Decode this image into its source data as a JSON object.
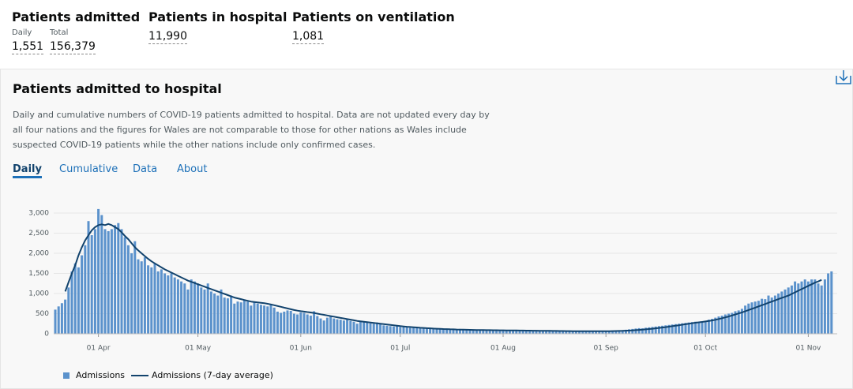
{
  "header": {
    "stats": [
      {
        "title": "Patients admitted",
        "items": [
          {
            "label": "Daily",
            "value": "1,551"
          },
          {
            "label": "Total",
            "value": "156,379"
          }
        ]
      },
      {
        "title": "Patients in hospital",
        "items": [
          {
            "value": "11,990"
          }
        ]
      },
      {
        "title": "Patients on ventilation",
        "items": [
          {
            "value": "1,081"
          }
        ]
      }
    ]
  },
  "card": {
    "title": "Patients admitted to hospital",
    "description": [
      "Daily and cumulative numbers of COVID-19 patients admitted to hospital. Data are not updated every day by",
      "all four nations and the figures for Wales are not comparable to those for other nations as Wales include",
      "suspected COVID-19 patients while the other nations include only confirmed cases."
    ],
    "tabs": [
      "Daily",
      "Cumulative",
      "Data",
      "About"
    ]
  },
  "chart_data": {
    "type": "bar",
    "grid": true,
    "legend": "bottom-left",
    "ylim": [
      0,
      3000
    ],
    "yticks": [
      0,
      500,
      {
        "value": 1000,
        "label": "1,000"
      },
      {
        "value": 1500,
        "label": "1,500"
      },
      {
        "value": 2000,
        "label": "2,000"
      },
      {
        "value": 2500,
        "label": "2,500"
      },
      {
        "value": 3000,
        "label": "3,000"
      }
    ],
    "xticks": [
      "01 Apr",
      "01 May",
      "01 Jun",
      "01 Jul",
      "01 Aug",
      "01 Sep",
      "01 Oct",
      "01 Nov"
    ],
    "categories": [
      "19 Mar",
      "20 Mar",
      "21 Mar",
      "22 Mar",
      "23 Mar",
      "24 Mar",
      "25 Mar",
      "26 Mar",
      "27 Mar",
      "28 Mar",
      "29 Mar",
      "30 Mar",
      "31 Mar",
      "01 Apr",
      "02 Apr",
      "03 Apr",
      "04 Apr",
      "05 Apr",
      "06 Apr",
      "07 Apr",
      "08 Apr",
      "09 Apr",
      "10 Apr",
      "11 Apr",
      "12 Apr",
      "13 Apr",
      "14 Apr",
      "15 Apr",
      "16 Apr",
      "17 Apr",
      "18 Apr",
      "19 Apr",
      "20 Apr",
      "21 Apr",
      "22 Apr",
      "23 Apr",
      "24 Apr",
      "25 Apr",
      "26 Apr",
      "27 Apr",
      "28 Apr",
      "29 Apr",
      "30 Apr",
      "01 May",
      "02 May",
      "03 May",
      "04 May",
      "05 May",
      "06 May",
      "07 May",
      "08 May",
      "09 May",
      "10 May",
      "11 May",
      "12 May",
      "13 May",
      "14 May",
      "15 May",
      "16 May",
      "17 May",
      "18 May",
      "19 May",
      "20 May",
      "21 May",
      "22 May",
      "23 May",
      "24 May",
      "25 May",
      "26 May",
      "27 May",
      "28 May",
      "29 May",
      "30 May",
      "31 May",
      "01 Jun",
      "02 Jun",
      "03 Jun",
      "04 Jun",
      "05 Jun",
      "06 Jun",
      "07 Jun",
      "08 Jun",
      "09 Jun",
      "10 Jun",
      "11 Jun",
      "12 Jun",
      "13 Jun",
      "14 Jun",
      "15 Jun",
      "16 Jun",
      "17 Jun",
      "18 Jun",
      "19 Jun",
      "20 Jun",
      "21 Jun",
      "22 Jun",
      "23 Jun",
      "24 Jun",
      "25 Jun",
      "26 Jun",
      "27 Jun",
      "28 Jun",
      "29 Jun",
      "30 Jun",
      "01 Jul",
      "02 Jul",
      "03 Jul",
      "04 Jul",
      "05 Jul",
      "06 Jul",
      "07 Jul",
      "08 Jul",
      "09 Jul",
      "10 Jul",
      "11 Jul",
      "12 Jul",
      "13 Jul",
      "14 Jul",
      "15 Jul",
      "16 Jul",
      "17 Jul",
      "18 Jul",
      "19 Jul",
      "20 Jul",
      "21 Jul",
      "22 Jul",
      "23 Jul",
      "24 Jul",
      "25 Jul",
      "26 Jul",
      "27 Jul",
      "28 Jul",
      "29 Jul",
      "30 Jul",
      "31 Jul",
      "01 Aug",
      "02 Aug",
      "03 Aug",
      "04 Aug",
      "05 Aug",
      "06 Aug",
      "07 Aug",
      "08 Aug",
      "09 Aug",
      "10 Aug",
      "11 Aug",
      "12 Aug",
      "13 Aug",
      "14 Aug",
      "15 Aug",
      "16 Aug",
      "17 Aug",
      "18 Aug",
      "19 Aug",
      "20 Aug",
      "21 Aug",
      "22 Aug",
      "23 Aug",
      "24 Aug",
      "25 Aug",
      "26 Aug",
      "27 Aug",
      "28 Aug",
      "29 Aug",
      "30 Aug",
      "31 Aug",
      "01 Sep",
      "02 Sep",
      "03 Sep",
      "04 Sep",
      "05 Sep",
      "06 Sep",
      "07 Sep",
      "08 Sep",
      "09 Sep",
      "10 Sep",
      "11 Sep",
      "12 Sep",
      "13 Sep",
      "14 Sep",
      "15 Sep",
      "16 Sep",
      "17 Sep",
      "18 Sep",
      "19 Sep",
      "20 Sep",
      "21 Sep",
      "22 Sep",
      "23 Sep",
      "24 Sep",
      "25 Sep",
      "26 Sep",
      "27 Sep",
      "28 Sep",
      "29 Sep",
      "30 Sep",
      "01 Oct",
      "02 Oct",
      "03 Oct",
      "04 Oct",
      "05 Oct",
      "06 Oct",
      "07 Oct",
      "08 Oct",
      "09 Oct",
      "10 Oct",
      "11 Oct",
      "12 Oct",
      "13 Oct",
      "14 Oct",
      "15 Oct",
      "16 Oct",
      "17 Oct",
      "18 Oct",
      "19 Oct",
      "20 Oct",
      "21 Oct",
      "22 Oct",
      "23 Oct",
      "24 Oct",
      "25 Oct",
      "26 Oct",
      "27 Oct",
      "28 Oct",
      "29 Oct",
      "30 Oct",
      "31 Oct",
      "01 Nov",
      "02 Nov",
      "03 Nov",
      "04 Nov",
      "05 Nov",
      "06 Nov",
      "07 Nov",
      "08 Nov"
    ],
    "series": [
      {
        "name": "Admissions",
        "type": "bar",
        "color": "#5b92cc",
        "values": [
          600,
          680,
          760,
          850,
          1150,
          1550,
          1750,
          1650,
          1950,
          2200,
          2800,
          2450,
          2600,
          3100,
          2950,
          2600,
          2550,
          2600,
          2700,
          2750,
          2600,
          2400,
          2200,
          2000,
          2300,
          1850,
          1800,
          1900,
          1700,
          1650,
          1750,
          1550,
          1600,
          1500,
          1450,
          1500,
          1400,
          1350,
          1300,
          1250,
          1100,
          1350,
          1300,
          1250,
          1150,
          1100,
          1250,
          1050,
          1000,
          950,
          1100,
          900,
          880,
          950,
          750,
          800,
          780,
          850,
          800,
          700,
          780,
          750,
          720,
          700,
          680,
          720,
          650,
          550,
          520,
          550,
          580,
          570,
          500,
          480,
          530,
          520,
          480,
          450,
          560,
          440,
          380,
          330,
          400,
          420,
          380,
          360,
          350,
          330,
          380,
          320,
          300,
          250,
          310,
          300,
          280,
          260,
          250,
          280,
          240,
          210,
          200,
          190,
          180,
          190,
          170,
          180,
          160,
          150,
          160,
          150,
          140,
          130,
          140,
          150,
          130,
          120,
          110,
          130,
          120,
          110,
          100,
          110,
          120,
          100,
          95,
          100,
          90,
          95,
          100,
          90,
          85,
          90,
          95,
          80,
          85,
          90,
          80,
          75,
          85,
          80,
          70,
          75,
          80,
          70,
          65,
          70,
          75,
          65,
          60,
          70,
          65,
          60,
          70,
          65,
          60,
          65,
          70,
          60,
          60,
          65,
          55,
          60,
          65,
          60,
          55,
          60,
          70,
          75,
          80,
          85,
          80,
          90,
          100,
          110,
          120,
          130,
          140,
          135,
          150,
          160,
          170,
          180,
          190,
          200,
          210,
          220,
          230,
          240,
          250,
          260,
          270,
          280,
          290,
          300,
          280,
          310,
          320,
          350,
          370,
          400,
          430,
          450,
          480,
          500,
          520,
          560,
          580,
          620,
          700,
          750,
          780,
          800,
          820,
          870,
          860,
          950,
          900,
          950,
          1000,
          1050,
          1100,
          1150,
          1200,
          1300,
          1250,
          1300,
          1350,
          1300,
          1350,
          1350,
          1250,
          1200,
          1350,
          1500,
          1550
        ]
      },
      {
        "name": "Admissions (7-day average)",
        "type": "line",
        "color": "#12436d",
        "values": [
          null,
          null,
          null,
          1050,
          1280,
          1500,
          1700,
          1950,
          2150,
          2320,
          2450,
          2570,
          2650,
          2700,
          2720,
          2700,
          2730,
          2700,
          2650,
          2600,
          2520,
          2430,
          2350,
          2250,
          2150,
          2070,
          2000,
          1930,
          1860,
          1800,
          1750,
          1700,
          1650,
          1600,
          1560,
          1520,
          1480,
          1440,
          1400,
          1360,
          1320,
          1290,
          1260,
          1230,
          1200,
          1170,
          1140,
          1110,
          1080,
          1050,
          1020,
          990,
          960,
          930,
          900,
          880,
          860,
          840,
          820,
          800,
          790,
          780,
          770,
          760,
          745,
          730,
          710,
          690,
          670,
          650,
          630,
          610,
          590,
          575,
          560,
          550,
          540,
          530,
          515,
          500,
          485,
          470,
          455,
          440,
          425,
          410,
          395,
          380,
          365,
          350,
          335,
          320,
          310,
          300,
          290,
          280,
          270,
          260,
          250,
          240,
          230,
          220,
          210,
          200,
          190,
          182,
          175,
          168,
          162,
          156,
          150,
          145,
          140,
          135,
          130,
          126,
          122,
          118,
          115,
          112,
          109,
          106,
          104,
          102,
          100,
          98,
          96,
          94,
          93,
          92,
          91,
          90,
          89,
          88,
          87,
          86,
          85,
          84,
          83,
          82,
          81,
          80,
          79,
          78,
          77,
          76,
          75,
          74,
          73,
          72,
          71,
          70,
          69,
          68,
          67,
          66,
          65,
          64,
          64,
          63,
          63,
          62,
          62,
          62,
          62,
          62,
          63,
          64,
          66,
          68,
          70,
          73,
          76,
          80,
          85,
          90,
          96,
          102,
          110,
          118,
          126,
          135,
          145,
          155,
          165,
          176,
          188,
          200,
          212,
          225,
          238,
          250,
          262,
          274,
          285,
          295,
          305,
          318,
          332,
          348,
          366,
          386,
          408,
          430,
          455,
          480,
          505,
          530,
          560,
          590,
          620,
          650,
          680,
          710,
          740,
          770,
          800,
          830,
          860,
          890,
          920,
          950,
          990,
          1030,
          1070,
          1110,
          1150,
          1190,
          1230,
          1270,
          1300,
          1340,
          null,
          null,
          null
        ]
      }
    ]
  }
}
